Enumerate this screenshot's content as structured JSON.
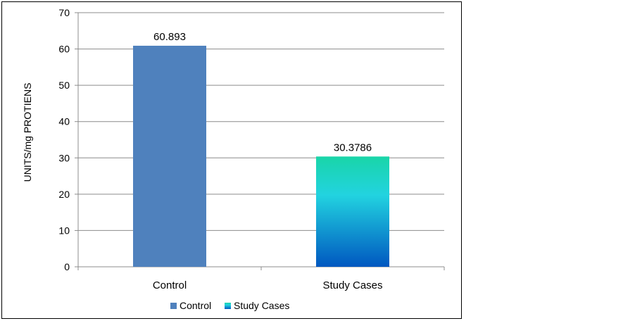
{
  "chart_data": {
    "type": "bar",
    "categories": [
      "Control",
      "Study Cases"
    ],
    "values": [
      60.893,
      30.3786
    ],
    "data_labels": [
      "60.893",
      "30.3786"
    ],
    "title": "",
    "xlabel": "",
    "ylabel": "UNITS/mg PROTIENS",
    "ylim": [
      0,
      70
    ],
    "yticks": [
      0,
      10,
      20,
      30,
      40,
      50,
      60,
      70
    ],
    "grid": true,
    "legend": {
      "placement": "bottom",
      "entries": [
        "Control",
        "Study Cases"
      ]
    },
    "colors": {
      "control": "#4f81bd",
      "study_top": "#19d5a8",
      "study_mid": "#22d3e0",
      "study_bottom": "#0057c0"
    }
  }
}
